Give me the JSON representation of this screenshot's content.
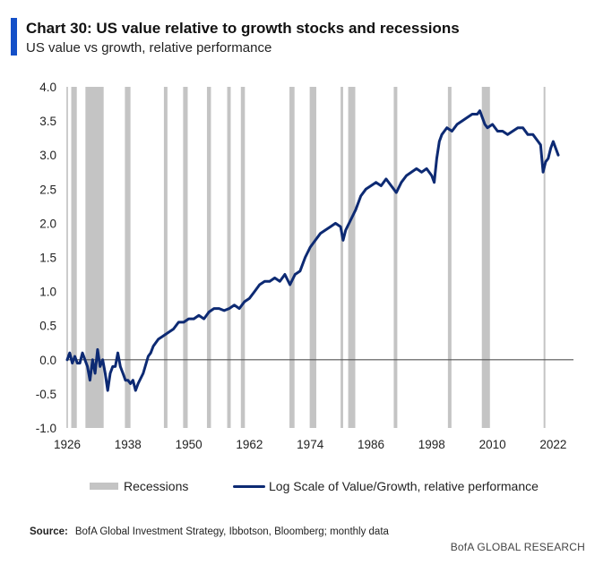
{
  "header": {
    "title": "Chart 30: US value relative to growth stocks and recessions",
    "subtitle": "US value vs growth, relative performance"
  },
  "legend": {
    "recessions_label": "Recessions",
    "line_label": "Log Scale of Value/Growth, relative performance"
  },
  "footer": {
    "source_label": "Source:",
    "source_text": "BofA Global Investment Strategy, Ibbotson,  Bloomberg; monthly  data",
    "brand": "BofA GLOBAL RESEARCH"
  },
  "colors": {
    "accent": "#1450c8",
    "line": "#0d2a73",
    "recession": "#c4c4c4",
    "zero_line": "#555555"
  },
  "chart_data": {
    "type": "line",
    "title": "Chart 30: US value relative to growth stocks and recessions",
    "subtitle": "US value vs growth, relative performance",
    "xlim": [
      1926,
      2026
    ],
    "ylim": [
      -1.0,
      4.0
    ],
    "x_ticks": [
      1926,
      1938,
      1950,
      1962,
      1974,
      1986,
      1998,
      2010,
      2022
    ],
    "y_ticks": [
      -1.0,
      -0.5,
      0.0,
      0.5,
      1.0,
      1.5,
      2.0,
      2.5,
      3.0,
      3.5,
      4.0
    ],
    "y_tick_labels": [
      "-1.0",
      "-0.5",
      "0.0",
      "0.5",
      "1.0",
      "1.5",
      "2.0",
      "2.5",
      "3.0",
      "3.5",
      "4.0"
    ],
    "x_tick_labels": [
      "1926",
      "1938",
      "1950",
      "1962",
      "1974",
      "1986",
      "1998",
      "2010",
      "2022"
    ],
    "grid": false,
    "legend_position": "bottom",
    "recessions": [
      [
        1926.8,
        1927.9
      ],
      [
        1929.6,
        1933.2
      ],
      [
        1937.4,
        1938.5
      ],
      [
        1945.1,
        1945.8
      ],
      [
        1948.9,
        1949.8
      ],
      [
        1953.6,
        1954.4
      ],
      [
        1957.6,
        1958.3
      ],
      [
        1960.3,
        1961.1
      ],
      [
        1969.9,
        1970.9
      ],
      [
        1973.9,
        1975.2
      ],
      [
        1980.0,
        1980.5
      ],
      [
        1981.5,
        1982.9
      ],
      [
        1990.5,
        1991.2
      ],
      [
        2001.2,
        2001.9
      ],
      [
        2007.9,
        2009.5
      ],
      [
        2020.1,
        2020.4
      ]
    ],
    "series": [
      {
        "name": "Log Scale of Value/Growth, relative performance",
        "x": [
          1926.0,
          1926.5,
          1927.0,
          1927.5,
          1928.0,
          1928.5,
          1929.0,
          1929.5,
          1930.0,
          1930.5,
          1931.0,
          1931.5,
          1932.0,
          1932.5,
          1933.0,
          1933.5,
          1934.0,
          1934.5,
          1935.0,
          1935.5,
          1936.0,
          1936.5,
          1937.0,
          1937.5,
          1938.0,
          1938.5,
          1939.0,
          1939.5,
          1940.0,
          1941.0,
          1942.0,
          1942.5,
          1943.0,
          1944.0,
          1945.0,
          1946.0,
          1947.0,
          1948.0,
          1949.0,
          1950.0,
          1951.0,
          1952.0,
          1953.0,
          1954.0,
          1955.0,
          1956.0,
          1957.0,
          1958.0,
          1959.0,
          1960.0,
          1961.0,
          1962.0,
          1963.0,
          1964.0,
          1965.0,
          1966.0,
          1967.0,
          1968.0,
          1969.0,
          1970.0,
          1971.0,
          1972.0,
          1973.0,
          1974.0,
          1975.0,
          1976.0,
          1977.0,
          1978.0,
          1979.0,
          1980.0,
          1980.5,
          1981.0,
          1982.0,
          1983.0,
          1984.0,
          1985.0,
          1986.0,
          1987.0,
          1988.0,
          1989.0,
          1990.0,
          1991.0,
          1992.0,
          1993.0,
          1994.0,
          1995.0,
          1996.0,
          1997.0,
          1998.0,
          1998.5,
          1999.0,
          1999.5,
          2000.0,
          2000.5,
          2001.0,
          2002.0,
          2003.0,
          2004.0,
          2005.0,
          2006.0,
          2007.0,
          2007.5,
          2008.0,
          2008.5,
          2009.0,
          2010.0,
          2011.0,
          2012.0,
          2013.0,
          2014.0,
          2015.0,
          2016.0,
          2017.0,
          2018.0,
          2019.0,
          2019.5,
          2020.0,
          2020.5,
          2021.0,
          2021.5,
          2022.0,
          2022.5,
          2023.0
        ],
        "y": [
          0.0,
          0.1,
          -0.05,
          0.05,
          -0.05,
          -0.05,
          0.1,
          0.0,
          -0.1,
          -0.3,
          0.0,
          -0.2,
          0.15,
          -0.1,
          0.0,
          -0.2,
          -0.45,
          -0.2,
          -0.1,
          -0.1,
          0.1,
          -0.1,
          -0.2,
          -0.3,
          -0.3,
          -0.35,
          -0.3,
          -0.45,
          -0.35,
          -0.2,
          0.05,
          0.1,
          0.2,
          0.3,
          0.35,
          0.4,
          0.45,
          0.55,
          0.55,
          0.6,
          0.6,
          0.65,
          0.6,
          0.7,
          0.75,
          0.75,
          0.72,
          0.75,
          0.8,
          0.75,
          0.85,
          0.9,
          1.0,
          1.1,
          1.15,
          1.15,
          1.2,
          1.15,
          1.25,
          1.1,
          1.25,
          1.3,
          1.5,
          1.65,
          1.75,
          1.85,
          1.9,
          1.95,
          2.0,
          1.95,
          1.75,
          1.9,
          2.05,
          2.2,
          2.4,
          2.5,
          2.55,
          2.6,
          2.55,
          2.65,
          2.55,
          2.45,
          2.6,
          2.7,
          2.75,
          2.8,
          2.75,
          2.8,
          2.7,
          2.6,
          2.95,
          3.2,
          3.3,
          3.35,
          3.4,
          3.35,
          3.45,
          3.5,
          3.55,
          3.6,
          3.6,
          3.65,
          3.55,
          3.45,
          3.4,
          3.45,
          3.35,
          3.35,
          3.3,
          3.35,
          3.4,
          3.4,
          3.3,
          3.3,
          3.2,
          3.15,
          2.75,
          2.9,
          2.95,
          3.1,
          3.2,
          3.1,
          3.0
        ]
      }
    ]
  }
}
